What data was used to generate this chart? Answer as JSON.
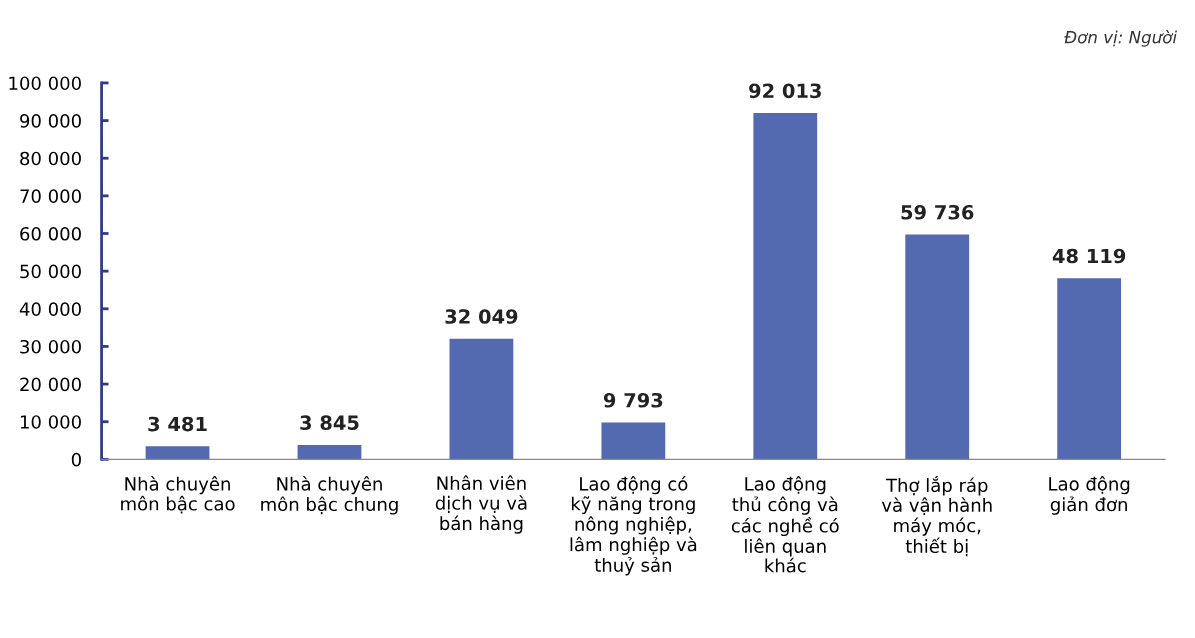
{
  "chart_data": {
    "type": "bar",
    "categories": [
      "Nhà chuyên\nmôn bậc cao",
      "Nhà chuyên\nmôn bậc chung",
      "Nhân viên\ndịch vụ và\nbán hàng",
      "Lao động có\nkỹ năng trong\nnông nghiệp,\nlâm nghiệp và\nthuỷ sản",
      "Lao động\nthủ công và\ncác nghề có\nliên quan\nkhác",
      "Thợ lắp ráp\nvà vận hành\nmáy móc,\nthiết bị",
      "Lao động\ngiản đơn"
    ],
    "values": [
      3481,
      3845,
      32049,
      9793,
      92013,
      59736,
      48119
    ],
    "value_labels": [
      "3 481",
      "3 845",
      "32 049",
      "9 793",
      "92 013",
      "59 736",
      "48 119"
    ],
    "color": "#536ab0",
    "ylim": [
      0,
      100000
    ],
    "yticks": [
      {
        "value": 0,
        "label": "0"
      },
      {
        "value": 10000,
        "label": "10 000"
      },
      {
        "value": 20000,
        "label": "20 000"
      },
      {
        "value": 30000,
        "label": "30 000"
      },
      {
        "value": 40000,
        "label": "40 000"
      },
      {
        "value": 50000,
        "label": "50 000"
      },
      {
        "value": 60000,
        "label": "60 000"
      },
      {
        "value": 70000,
        "label": "70 000"
      },
      {
        "value": 80000,
        "label": "80 000"
      },
      {
        "value": 90000,
        "label": "90 000"
      },
      {
        "value": 100000,
        "label": "100 000"
      }
    ],
    "annotations": [
      "Đơn vị: Người"
    ],
    "grid": false
  }
}
